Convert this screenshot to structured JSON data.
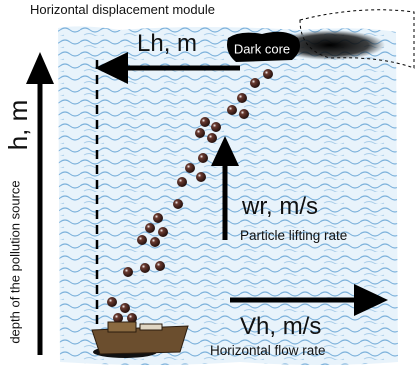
{
  "header": {
    "title": "Horizontal displacement module"
  },
  "labels": {
    "horizontal_distance": "Lh, m",
    "dark_core": "Dark core",
    "depth": "h, m",
    "depth_caption": "depth of the pollution source",
    "lifting_velocity": "wr, m/s",
    "lifting_caption": "Particle lifting rate",
    "flow_velocity": "Vh, m/s",
    "flow_caption": "Horizontal flow rate"
  }
}
